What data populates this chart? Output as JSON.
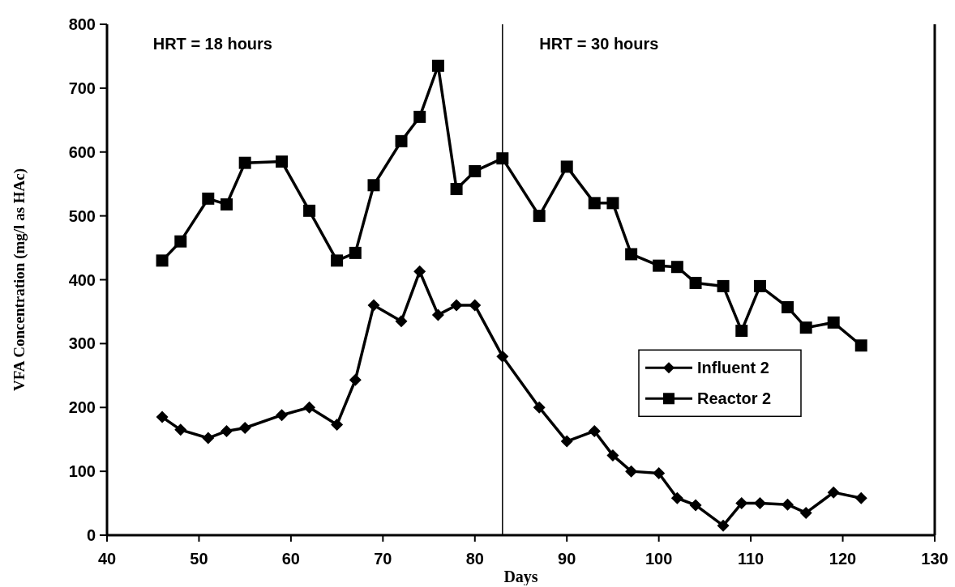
{
  "chart_data": {
    "type": "line",
    "xlabel": "Days",
    "ylabel": "VFA Concentration (mg/l as HAc)",
    "xlim": [
      40,
      130
    ],
    "xticks": [
      40,
      50,
      60,
      70,
      80,
      90,
      100,
      110,
      120,
      130
    ],
    "ylim": [
      0,
      800
    ],
    "yticks": [
      0,
      100,
      200,
      300,
      400,
      500,
      600,
      700,
      800
    ],
    "x": [
      46,
      48,
      51,
      53,
      55,
      59,
      62,
      65,
      67,
      69,
      72,
      74,
      76,
      78,
      80,
      83,
      87,
      90,
      93,
      95,
      97,
      100,
      102,
      104,
      107,
      109,
      111,
      114,
      116,
      119,
      122
    ],
    "series": [
      {
        "name": "Influent 2",
        "color": "#000000",
        "marker": "diamond",
        "values": [
          185,
          165,
          152,
          163,
          168,
          188,
          200,
          173,
          243,
          360,
          335,
          413,
          345,
          360,
          360,
          280,
          200,
          147,
          163,
          125,
          100,
          97,
          58,
          47,
          15,
          50,
          50,
          48,
          35,
          67,
          58
        ]
      },
      {
        "name": "Reactor 2",
        "color": "#000000",
        "marker": "square",
        "values": [
          430,
          460,
          527,
          518,
          583,
          585,
          508,
          430,
          442,
          548,
          617,
          655,
          735,
          542,
          570,
          590,
          500,
          577,
          520,
          520,
          440,
          422,
          420,
          395,
          390,
          320,
          390,
          357,
          325,
          333,
          297
        ]
      }
    ],
    "ref_lines": [
      {
        "axis": "x",
        "value": 83,
        "color": "#000000"
      }
    ],
    "annotations": [
      "HRT = 18 hours",
      "HRT = 30 hours"
    ],
    "legend": "right",
    "grid": false,
    "line_style": "solid"
  }
}
